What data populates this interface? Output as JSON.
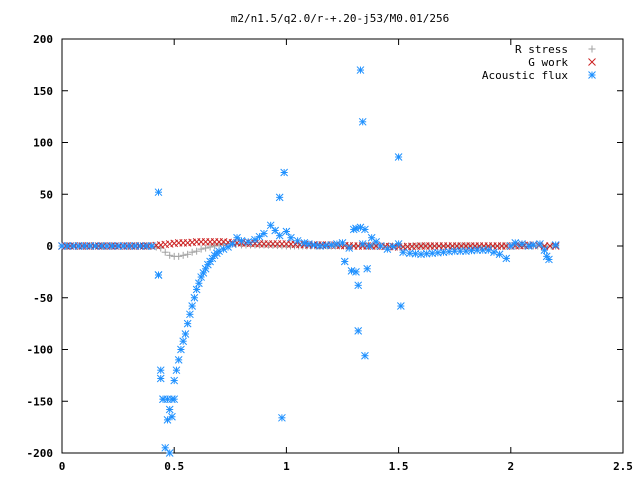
{
  "chart_data": {
    "type": "scatter",
    "title": "m2/n1.5/q2.0/r-+.20-j53/M0.01/256",
    "xlabel": "",
    "ylabel": "",
    "xlim": [
      0,
      2.5
    ],
    "ylim": [
      -200,
      200
    ],
    "xticks": [
      0,
      0.5,
      1,
      1.5,
      2,
      2.5
    ],
    "xtick_labels": [
      "0",
      "0.5",
      "1",
      "1.5",
      "2",
      "2.5"
    ],
    "yticks": [
      -200,
      -150,
      -100,
      -50,
      0,
      50,
      100,
      150,
      200
    ],
    "ytick_labels": [
      "-200",
      "-150",
      "-100",
      "-50",
      "0",
      "50",
      "100",
      "150",
      "200"
    ],
    "grid": false,
    "legend_position": "top-right",
    "series": [
      {
        "name": "R stress",
        "marker": "plus",
        "color": "#a0a0a0",
        "x": [
          0.0,
          0.1,
          0.2,
          0.3,
          0.4,
          0.44,
          0.46,
          0.48,
          0.5,
          0.52,
          0.54,
          0.56,
          0.58,
          0.6,
          0.62,
          0.64,
          0.66,
          0.68,
          0.7,
          0.72,
          0.75,
          0.8,
          0.9,
          1.0,
          1.2,
          1.4,
          1.6,
          1.8,
          2.0,
          2.1,
          2.2
        ],
        "y": [
          0,
          0,
          0,
          0,
          0,
          -2,
          -6,
          -9,
          -10,
          -10,
          -9,
          -8,
          -6,
          -5,
          -3,
          -2,
          -1,
          0,
          1,
          2,
          2,
          1,
          1,
          0,
          0,
          0,
          0,
          0,
          0,
          0,
          0
        ]
      },
      {
        "name": "G work",
        "marker": "x",
        "color": "#cc2020",
        "x": [
          0.0,
          0.2,
          0.4,
          0.44,
          0.48,
          0.52,
          0.56,
          0.6,
          0.64,
          0.68,
          0.72,
          0.76,
          0.8,
          0.9,
          1.0,
          1.1,
          1.2,
          1.3,
          1.4,
          1.5,
          1.6,
          1.7,
          1.8,
          1.9,
          2.0,
          2.1,
          2.15,
          2.2
        ],
        "y": [
          0,
          0,
          0,
          1,
          2,
          3,
          3,
          4,
          4,
          4,
          4,
          3,
          3,
          2,
          2,
          1,
          1,
          0,
          0,
          -1,
          0,
          0,
          0,
          0,
          0,
          1,
          0,
          0
        ]
      },
      {
        "name": "Acoustic flux",
        "marker": "star",
        "color": "#1e90ff",
        "x": [
          0.0,
          0.05,
          0.1,
          0.15,
          0.2,
          0.25,
          0.3,
          0.35,
          0.4,
          0.43,
          0.43,
          0.44,
          0.45,
          0.46,
          0.47,
          0.48,
          0.49,
          0.5,
          0.51,
          0.52,
          0.53,
          0.54,
          0.55,
          0.56,
          0.57,
          0.58,
          0.59,
          0.6,
          0.61,
          0.62,
          0.63,
          0.64,
          0.65,
          0.66,
          0.67,
          0.68,
          0.69,
          0.7,
          0.72,
          0.74,
          0.76,
          0.78,
          0.8,
          0.83,
          0.86,
          0.9,
          0.93,
          0.95,
          0.97,
          1.0,
          1.02,
          1.05,
          1.08,
          1.1,
          1.15,
          1.2,
          1.25,
          1.28,
          1.3,
          1.31,
          1.32,
          1.33,
          1.34,
          1.35,
          1.37,
          1.38,
          1.42,
          1.45,
          1.5,
          1.52,
          1.55,
          1.6,
          1.65,
          1.7,
          1.75,
          1.8,
          1.85,
          1.9,
          1.95,
          1.98,
          2.0,
          2.02,
          2.05,
          2.08,
          2.1,
          2.13,
          2.15,
          2.16,
          2.17,
          2.2,
          0.44,
          0.45,
          0.47,
          0.48,
          0.49,
          0.5,
          0.97,
          0.99,
          0.98,
          1.26,
          1.29,
          1.31,
          1.32,
          1.35,
          1.36,
          1.5,
          1.51,
          1.33,
          1.34,
          0.43
        ],
        "y": [
          0,
          0,
          0,
          0,
          0,
          0,
          0,
          0,
          0,
          52,
          -28,
          -120,
          -148,
          -195,
          -168,
          -158,
          -148,
          -130,
          -120,
          -110,
          -100,
          -92,
          -85,
          -75,
          -66,
          -58,
          -50,
          -42,
          -36,
          -30,
          -26,
          -22,
          -18,
          -15,
          -12,
          -9,
          -7,
          -5,
          -3,
          -1,
          2,
          8,
          5,
          4,
          6,
          12,
          20,
          15,
          10,
          14,
          8,
          5,
          3,
          2,
          0,
          1,
          3,
          -2,
          16,
          17,
          -38,
          18,
          2,
          16,
          0,
          8,
          0,
          -3,
          2,
          -6,
          -7,
          -8,
          -7,
          -6,
          -5,
          -5,
          -4,
          -4,
          -8,
          -12,
          0,
          3,
          2,
          0,
          1,
          2,
          -4,
          -10,
          -13,
          1,
          -128,
          -148,
          -148,
          -200,
          -165,
          -148,
          47,
          71,
          -166,
          -15,
          -24,
          -25,
          -82,
          -106,
          -22,
          86,
          -58,
          170,
          120,
          -28
        ]
      }
    ]
  }
}
